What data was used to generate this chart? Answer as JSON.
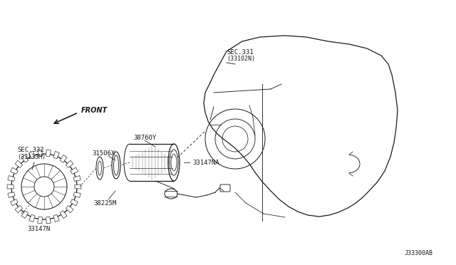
{
  "bg_color": "#ffffff",
  "line_color": "#1a1a1a",
  "fig_width": 6.4,
  "fig_height": 3.72,
  "labels": {
    "SEC331": "SEC.331",
    "SEC331_sub": "(33102N)",
    "part_38760Y": "38760Y",
    "part_31506X": "31506X",
    "part_33147NA": "33147NA",
    "part_38225M": "38225M",
    "SEC332": "SEC.332",
    "SEC332_sub": "(33133M)",
    "part_33147N": "33147N",
    "front": "FRONT",
    "diagram_id": "J33300AB"
  }
}
